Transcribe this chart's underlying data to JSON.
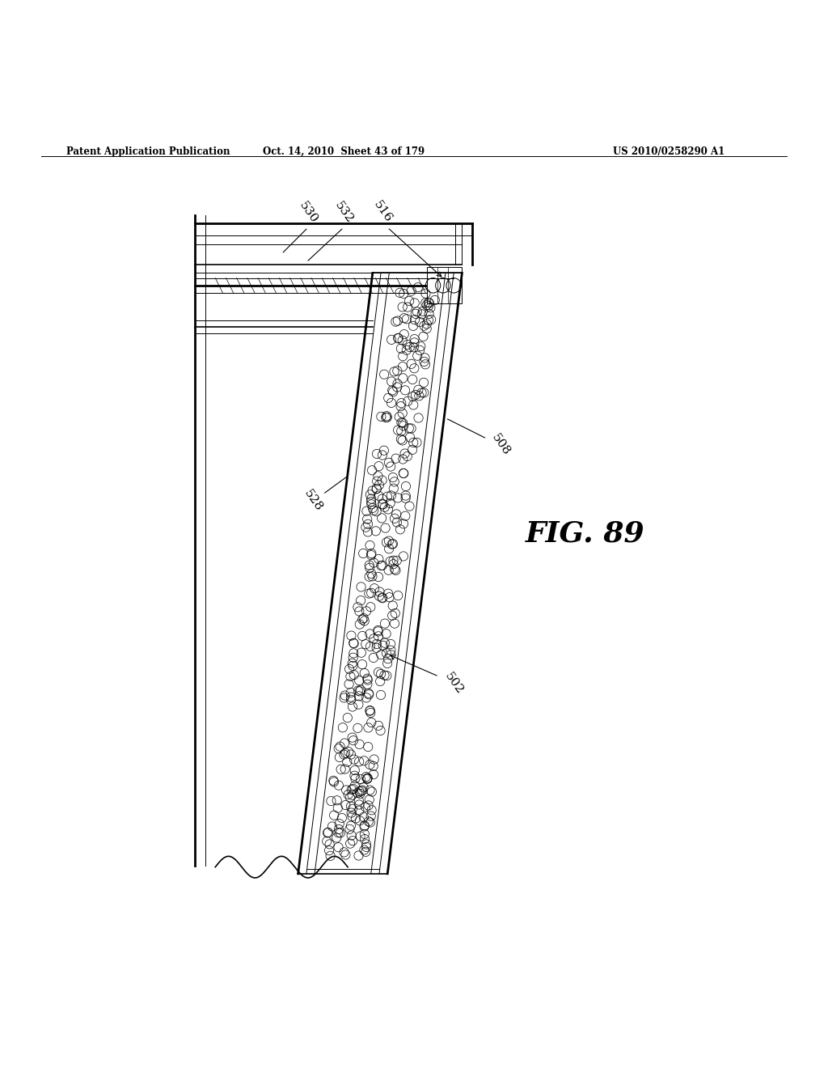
{
  "title_left": "Patent Application Publication",
  "title_center": "Oct. 14, 2010  Sheet 43 of 179",
  "title_right": "US 2010/0258290 A1",
  "fig_label": "FIG. 89",
  "background": "#ffffff",
  "line_color": "#000000"
}
